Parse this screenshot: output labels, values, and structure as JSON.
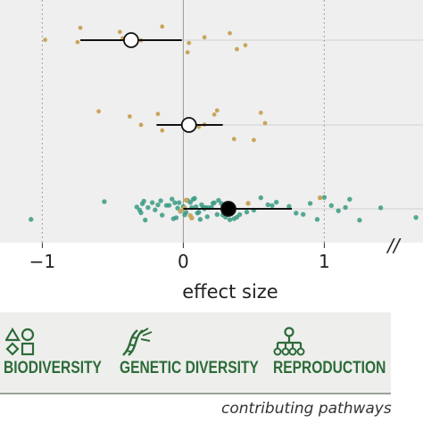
{
  "chart_data": {
    "type": "scatter",
    "xlabel": "effect size",
    "xlim": [
      -1.3,
      1.7
    ],
    "x_ticks": [
      -1,
      0,
      1
    ],
    "x_tick_labels": [
      "−1",
      "0",
      "1"
    ],
    "axis_break": "//",
    "reference_lines": [
      -1,
      1
    ],
    "series": [
      {
        "row": 1,
        "color": "#c9a55c",
        "estimate": -0.37,
        "ci": [
          -0.73,
          -0.01
        ],
        "estimate_fill": "#ffffff",
        "points": [
          -0.98,
          -0.75,
          -0.73,
          -0.45,
          -0.43,
          -0.3,
          -0.15,
          0.03,
          0.04,
          0.15,
          0.33,
          0.38,
          0.44
        ]
      },
      {
        "row": 2,
        "color": "#c9a55c",
        "estimate": 0.04,
        "ci": [
          -0.19,
          0.28
        ],
        "estimate_fill": "#ffffff",
        "points": [
          -0.6,
          -0.3,
          -0.38,
          -0.15,
          -0.18,
          0.11,
          0.15,
          0.22,
          0.24,
          0.36,
          0.5,
          0.55,
          0.58
        ]
      },
      {
        "row": 3,
        "color": "#3a9a82",
        "estimate": 0.32,
        "ci": [
          0.0,
          0.77
        ],
        "estimate_fill": "#000000",
        "points": [
          -1.08,
          -0.56,
          -0.33,
          -0.31,
          -0.3,
          -0.29,
          -0.28,
          -0.27,
          -0.25,
          -0.22,
          -0.2,
          -0.18,
          -0.16,
          -0.15,
          -0.12,
          -0.1,
          -0.08,
          -0.07,
          -0.06,
          -0.05,
          -0.04,
          -0.03,
          -0.02,
          0.0,
          0.01,
          0.02,
          0.03,
          0.05,
          0.06,
          0.07,
          0.08,
          0.09,
          0.1,
          0.11,
          0.12,
          0.13,
          0.14,
          0.15,
          0.16,
          0.17,
          0.18,
          0.2,
          0.21,
          0.22,
          0.24,
          0.25,
          0.27,
          0.28,
          0.3,
          0.33,
          0.36,
          0.38,
          0.4,
          0.45,
          0.5,
          0.55,
          0.6,
          0.63,
          0.66,
          0.75,
          0.8,
          0.85,
          0.9,
          0.95,
          1.0,
          1.05,
          1.1,
          1.15,
          1.18,
          1.25,
          1.4,
          1.65
        ],
        "tan_points": [
          -0.02,
          0.01,
          0.02,
          0.05,
          0.06,
          0.46,
          0.97
        ]
      }
    ]
  },
  "legend": {
    "items": [
      {
        "label": "BIODIVERSITY",
        "icon": "shapes-icon"
      },
      {
        "label": "GENETIC DIVERSITY",
        "icon": "dna-icon"
      },
      {
        "label": "REPRODUCTION",
        "icon": "family-tree-icon"
      }
    ],
    "caption": "contributing pathways",
    "text_color": "#2d6b3a"
  }
}
